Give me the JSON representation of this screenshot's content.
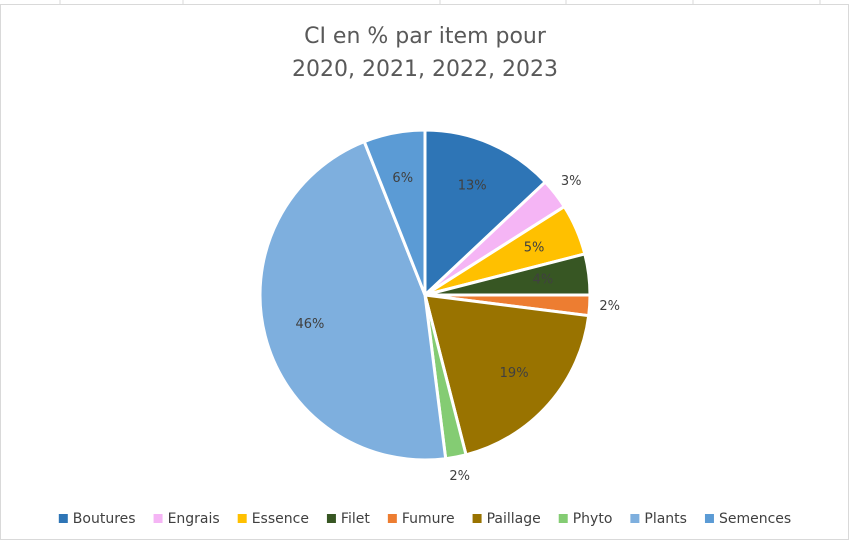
{
  "chart_data": {
    "type": "pie",
    "title": [
      "CI en % par item pour",
      "2020, 2021, 2022, 2023"
    ],
    "categories": [
      "Boutures",
      "Engrais",
      "Essence",
      "Filet",
      "Fumure",
      "Paillage",
      "Phyto",
      "Plants",
      "Semences"
    ],
    "values": [
      13,
      3,
      5,
      4,
      2,
      19,
      2,
      46,
      6
    ],
    "value_labels": [
      "13%",
      "3%",
      "5%",
      "4%",
      "2%",
      "19%",
      "2%",
      "46%",
      "6%"
    ],
    "colors": [
      "#2e75b6",
      "#f5b5f5",
      "#ffc000",
      "#375623",
      "#ed7d31",
      "#997300",
      "#84cc73",
      "#7eafde",
      "#5b9bd5"
    ],
    "legend": "bottom"
  }
}
